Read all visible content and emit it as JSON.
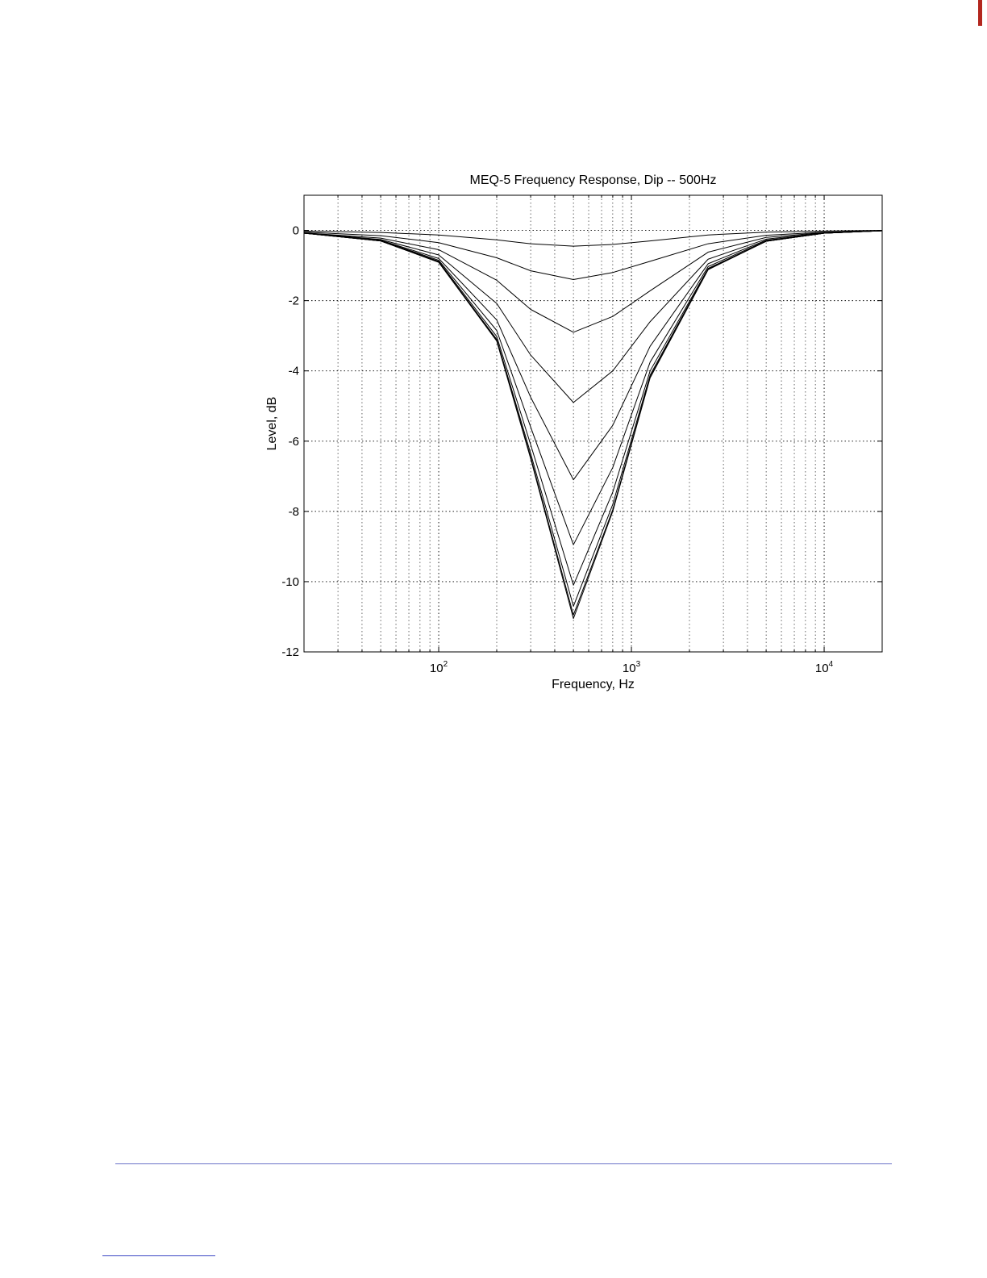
{
  "page": {
    "accent_mark_color": "#b3261e",
    "footer_rule_color": "#6b73c9",
    "footnote_rule_color": "#3b47c4"
  },
  "chart_data": {
    "type": "line",
    "title": "MEQ-5 Frequency Response, Dip -- 500Hz",
    "xlabel": "Frequency, Hz",
    "ylabel": "Level, dB",
    "x_scale": "log",
    "xlim": [
      20,
      20000
    ],
    "ylim": [
      -12,
      1
    ],
    "x_ticks": [
      {
        "value": 100,
        "base": "10",
        "exp": "2"
      },
      {
        "value": 1000,
        "base": "10",
        "exp": "3"
      },
      {
        "value": 10000,
        "base": "10",
        "exp": "4"
      }
    ],
    "y_ticks": [
      "0",
      "-2",
      "-4",
      "-6",
      "-8",
      "-10",
      "-12"
    ],
    "grid": true,
    "center_frequency_hz": 500,
    "series": [
      {
        "min_db": -0.45,
        "x": [
          20,
          50,
          100,
          200,
          300,
          500,
          800,
          1250,
          2500,
          5000,
          10000,
          20000
        ],
        "y": [
          -0.02,
          -0.06,
          -0.13,
          -0.27,
          -0.38,
          -0.45,
          -0.4,
          -0.3,
          -0.13,
          -0.05,
          -0.02,
          0.0
        ]
      },
      {
        "min_db": -1.4,
        "x": [
          20,
          50,
          100,
          200,
          300,
          500,
          800,
          1250,
          2500,
          5000,
          10000,
          20000
        ],
        "y": [
          -0.05,
          -0.15,
          -0.35,
          -0.78,
          -1.15,
          -1.4,
          -1.2,
          -0.88,
          -0.38,
          -0.14,
          -0.05,
          -0.01
        ]
      },
      {
        "min_db": -2.9,
        "x": [
          20,
          50,
          100,
          200,
          300,
          500,
          800,
          1250,
          2500,
          5000,
          10000,
          20000
        ],
        "y": [
          -0.07,
          -0.22,
          -0.55,
          -1.42,
          -2.25,
          -2.9,
          -2.45,
          -1.72,
          -0.62,
          -0.2,
          -0.06,
          -0.01
        ]
      },
      {
        "min_db": -4.9,
        "x": [
          20,
          50,
          100,
          200,
          300,
          500,
          800,
          1250,
          2500,
          5000,
          10000,
          20000
        ],
        "y": [
          -0.07,
          -0.26,
          -0.7,
          -2.08,
          -3.55,
          -4.9,
          -4.0,
          -2.6,
          -0.82,
          -0.25,
          -0.07,
          -0.01
        ]
      },
      {
        "min_db": -7.1,
        "x": [
          20,
          50,
          100,
          200,
          300,
          500,
          800,
          1250,
          2500,
          5000,
          10000,
          20000
        ],
        "y": [
          -0.08,
          -0.28,
          -0.8,
          -2.55,
          -4.75,
          -7.1,
          -5.55,
          -3.3,
          -0.95,
          -0.28,
          -0.08,
          -0.01
        ]
      },
      {
        "min_db": -8.95,
        "x": [
          20,
          50,
          100,
          200,
          300,
          500,
          800,
          1250,
          2500,
          5000,
          10000,
          20000
        ],
        "y": [
          -0.08,
          -0.29,
          -0.85,
          -2.85,
          -5.6,
          -8.95,
          -6.75,
          -3.75,
          -1.03,
          -0.3,
          -0.08,
          -0.01
        ]
      },
      {
        "min_db": -10.1,
        "x": [
          20,
          50,
          100,
          200,
          300,
          500,
          800,
          1250,
          2500,
          5000,
          10000,
          20000
        ],
        "y": [
          -0.08,
          -0.3,
          -0.88,
          -3.02,
          -6.1,
          -10.1,
          -7.45,
          -4.0,
          -1.08,
          -0.31,
          -0.08,
          -0.01
        ]
      },
      {
        "min_db": -10.7,
        "x": [
          20,
          50,
          100,
          200,
          300,
          500,
          800,
          1250,
          2500,
          5000,
          10000,
          20000
        ],
        "y": [
          -0.08,
          -0.3,
          -0.9,
          -3.1,
          -6.35,
          -10.7,
          -7.8,
          -4.12,
          -1.1,
          -0.31,
          -0.08,
          -0.01
        ]
      },
      {
        "min_db": -10.95,
        "x": [
          20,
          50,
          100,
          200,
          300,
          500,
          800,
          1250,
          2500,
          5000,
          10000,
          20000
        ],
        "y": [
          -0.08,
          -0.3,
          -0.9,
          -3.13,
          -6.45,
          -10.95,
          -7.95,
          -4.17,
          -1.11,
          -0.31,
          -0.08,
          -0.01
        ]
      },
      {
        "min_db": -11.05,
        "x": [
          20,
          50,
          100,
          200,
          300,
          500,
          800,
          1250,
          2500,
          5000,
          10000,
          20000
        ],
        "y": [
          -0.08,
          -0.3,
          -0.91,
          -3.15,
          -6.5,
          -11.05,
          -8.0,
          -4.2,
          -1.12,
          -0.31,
          -0.08,
          -0.01
        ]
      }
    ]
  }
}
